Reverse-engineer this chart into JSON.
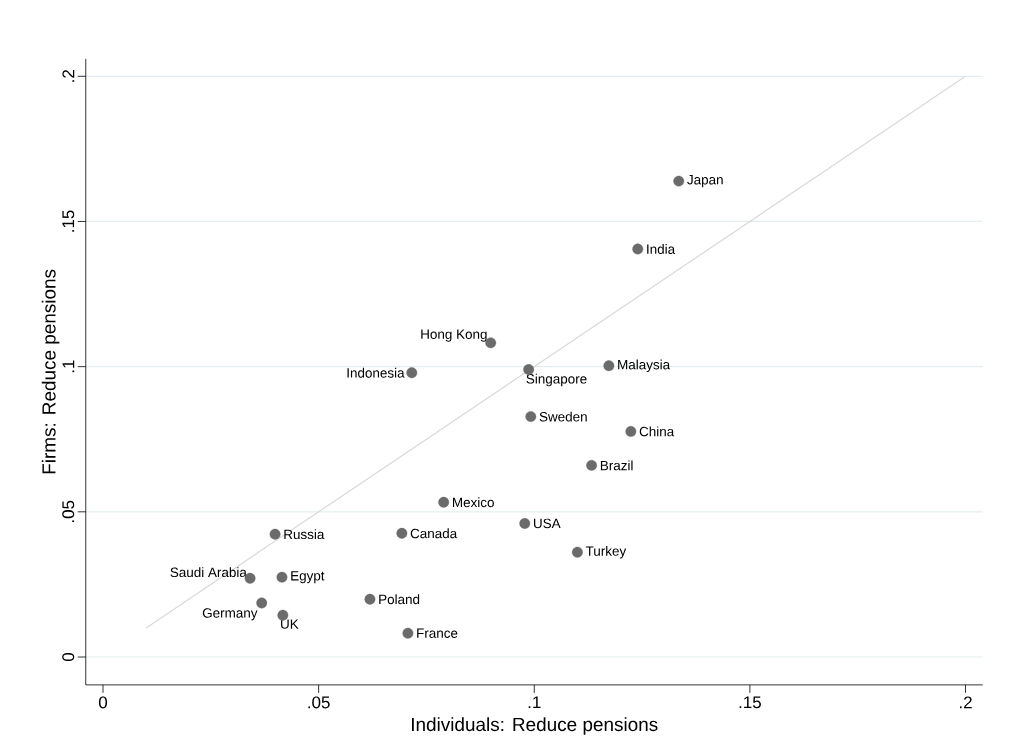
{
  "chart_data": {
    "type": "scatter",
    "xlabel": "Individuals: Reduce pensions",
    "ylabel": "Firms: Reduce pensions",
    "xlim": [
      -0.004,
      0.204
    ],
    "ylim": [
      -0.0096,
      0.206
    ],
    "xticks": [
      0,
      {
        "value": 0.05,
        "label": ".05"
      },
      {
        "value": 0.1,
        "label": ".1"
      },
      {
        "value": 0.15,
        "label": ".15"
      },
      {
        "value": 0.2,
        "label": ".2"
      }
    ],
    "yticks": [
      0,
      {
        "value": 0.05,
        "label": ".05"
      },
      {
        "value": 0.1,
        "label": ".1"
      },
      {
        "value": 0.15,
        "label": ".15"
      },
      {
        "value": 0.2,
        "label": ".2"
      }
    ],
    "grid": "y",
    "series": [
      {
        "marker": "circle",
        "color": "#6b6b6b",
        "x": [
          0.1335,
          0.124,
          0.0899,
          0.0716,
          0.0987,
          0.1173,
          0.0992,
          0.1224,
          0.1133,
          0.079,
          0.0978,
          0.0693,
          0.0399,
          0.11,
          0.0341,
          0.0415,
          0.0368,
          0.0417,
          0.0619,
          0.0707
        ],
        "values": [
          0.1639,
          0.1405,
          0.1082,
          0.0979,
          0.099,
          0.1003,
          0.0828,
          0.0777,
          0.066,
          0.0533,
          0.046,
          0.0426,
          0.0423,
          0.0361,
          0.0271,
          0.0275,
          0.0186,
          0.0144,
          0.0199,
          0.0082
        ]
      },
      {
        "type": "line",
        "color": "#d9d9d9",
        "x": [
          0.01,
          0.2
        ],
        "values": [
          0.01,
          0.2
        ]
      }
    ],
    "annotations": [
      {
        "text": "Japan",
        "x": 0.1335,
        "y": 0.1639
      },
      {
        "text": "India",
        "x": 0.124,
        "y": 0.1405
      },
      {
        "text": "Hong Kong",
        "x": 0.0899,
        "y": 0.1082
      },
      {
        "text": "Indonesia",
        "x": 0.0716,
        "y": 0.0979
      },
      {
        "text": "Singapore",
        "x": 0.0987,
        "y": 0.099
      },
      {
        "text": "Malaysia",
        "x": 0.1173,
        "y": 0.1003
      },
      {
        "text": "Sweden",
        "x": 0.0992,
        "y": 0.0828
      },
      {
        "text": "China",
        "x": 0.1224,
        "y": 0.0777
      },
      {
        "text": "Brazil",
        "x": 0.1133,
        "y": 0.066
      },
      {
        "text": "Mexico",
        "x": 0.079,
        "y": 0.0533
      },
      {
        "text": "USA",
        "x": 0.0978,
        "y": 0.046
      },
      {
        "text": "Canada",
        "x": 0.0693,
        "y": 0.0426
      },
      {
        "text": "Russia",
        "x": 0.0399,
        "y": 0.0423
      },
      {
        "text": "Turkey",
        "x": 0.11,
        "y": 0.0361
      },
      {
        "text": "Saudi Arabia",
        "x": 0.0341,
        "y": 0.0271
      },
      {
        "text": "Egypt",
        "x": 0.0415,
        "y": 0.0275
      },
      {
        "text": "Germany",
        "x": 0.0368,
        "y": 0.0186
      },
      {
        "text": "UK",
        "x": 0.0417,
        "y": 0.0144
      },
      {
        "text": "Poland",
        "x": 0.0619,
        "y": 0.0199
      },
      {
        "text": "France",
        "x": 0.0707,
        "y": 0.0082
      }
    ]
  }
}
